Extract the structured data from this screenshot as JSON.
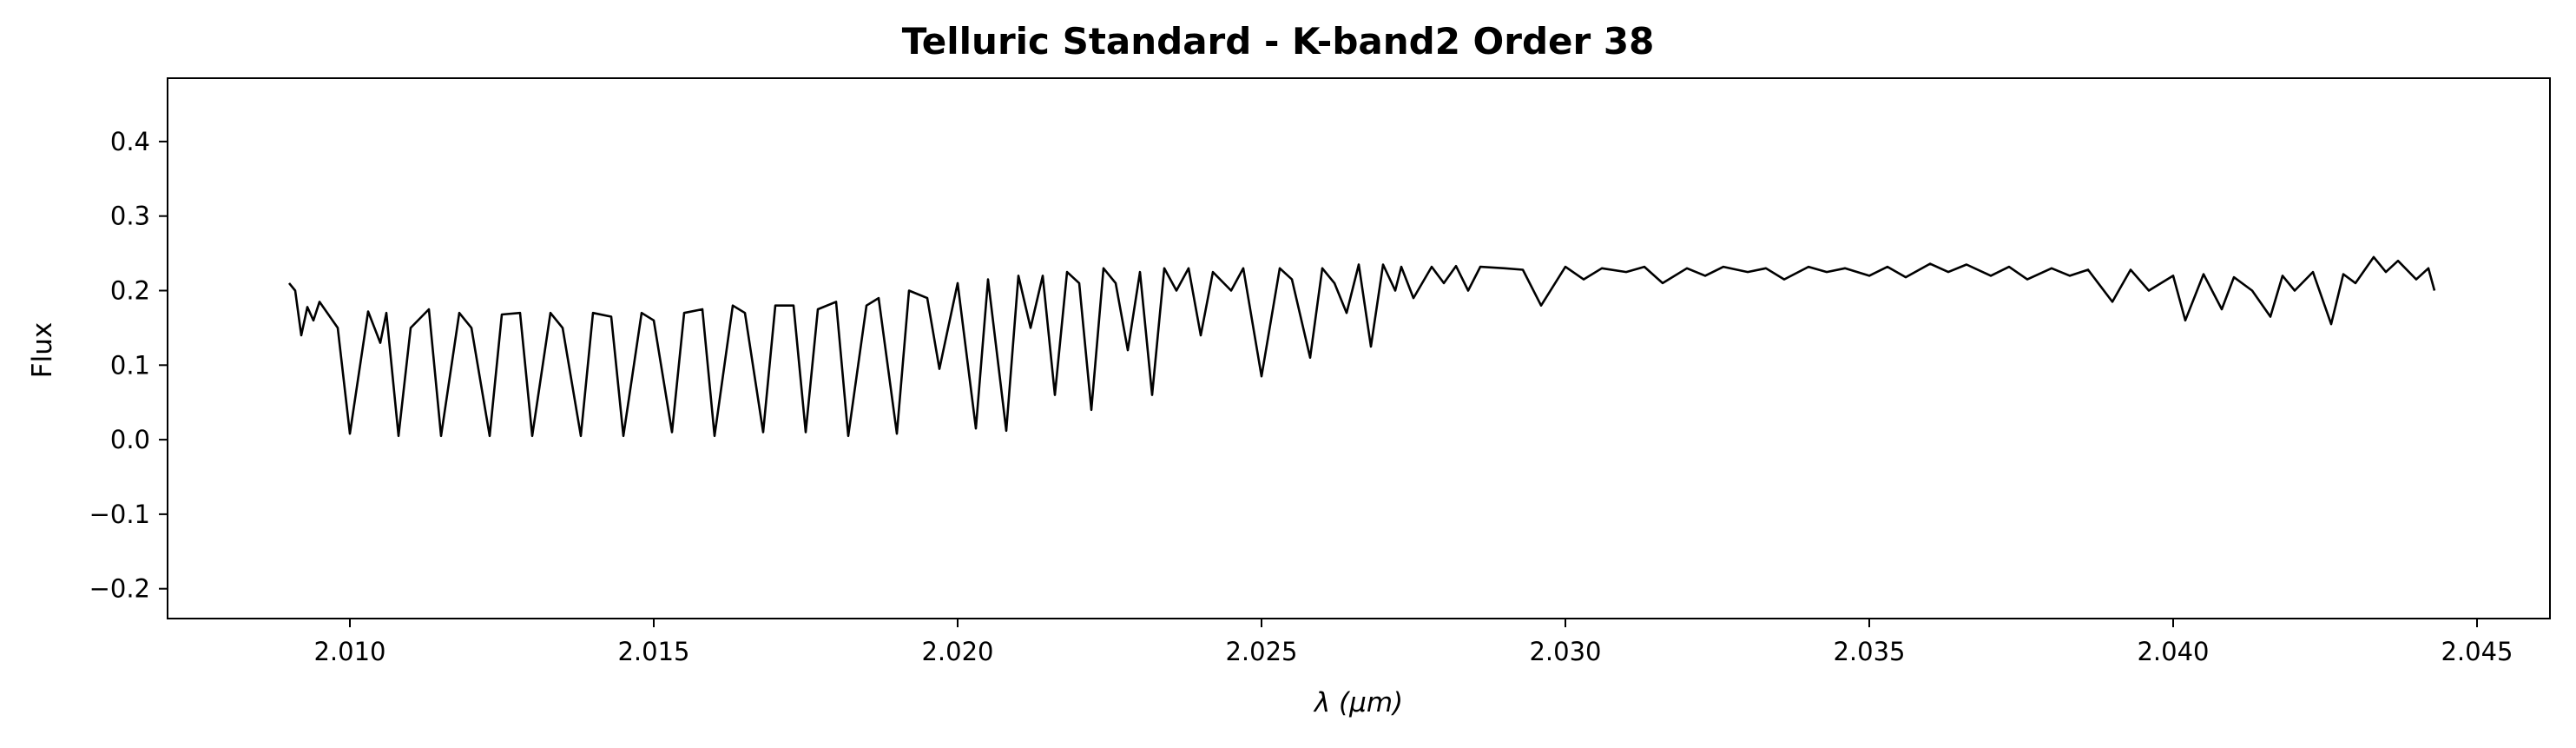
{
  "chart_data": {
    "type": "line",
    "title": "Telluric Standard - K-band2 Order 38",
    "xlabel": "λ (μm)",
    "ylabel": "Flux",
    "xlim": [
      2.007,
      2.0462
    ],
    "ylim": [
      -0.24,
      0.485
    ],
    "x_ticks": [
      2.01,
      2.015,
      2.02,
      2.025,
      2.03,
      2.035,
      2.04,
      2.045
    ],
    "x_tick_labels": [
      "2.010",
      "2.015",
      "2.020",
      "2.025",
      "2.030",
      "2.035",
      "2.040",
      "2.045"
    ],
    "y_ticks": [
      -0.2,
      -0.1,
      0.0,
      0.1,
      0.2,
      0.3,
      0.4
    ],
    "y_tick_labels": [
      "−0.2",
      "−0.1",
      "0.0",
      "0.1",
      "0.2",
      "0.3",
      "0.4"
    ],
    "grid": false,
    "legend": "none",
    "line_color": "#000000",
    "series": [
      {
        "x": [
          2.009,
          2.0091,
          2.0092,
          2.0093,
          2.0094,
          2.0095,
          2.0098,
          2.01,
          2.0103,
          2.0105,
          2.0106,
          2.0108,
          2.011,
          2.0113,
          2.0115,
          2.0118,
          2.012,
          2.0123,
          2.0125,
          2.0128,
          2.013,
          2.0133,
          2.0135,
          2.0138,
          2.014,
          2.0143,
          2.0145,
          2.0148,
          2.015,
          2.0153,
          2.0155,
          2.0158,
          2.016,
          2.0163,
          2.0165,
          2.0168,
          2.017,
          2.0173,
          2.0175,
          2.0177,
          2.018,
          2.0182,
          2.0185,
          2.0187,
          2.019,
          2.0192,
          2.0195,
          2.0197,
          2.02,
          2.0203,
          2.0205,
          2.0208,
          2.021,
          2.0212,
          2.0214,
          2.0216,
          2.0218,
          2.022,
          2.0222,
          2.0224,
          2.0226,
          2.0228,
          2.023,
          2.0232,
          2.0234,
          2.0236,
          2.0238,
          2.024,
          2.0242,
          2.0245,
          2.0247,
          2.025,
          2.0253,
          2.0255,
          2.0258,
          2.026,
          2.0262,
          2.0264,
          2.0266,
          2.0268,
          2.027,
          2.0272,
          2.0273,
          2.0275,
          2.0278,
          2.028,
          2.0282,
          2.0284,
          2.0286,
          2.029,
          2.0293,
          2.0296,
          2.03,
          2.0303,
          2.0306,
          2.031,
          2.0313,
          2.0316,
          2.032,
          2.0323,
          2.0326,
          2.033,
          2.0333,
          2.0336,
          2.034,
          2.0343,
          2.0346,
          2.035,
          2.0353,
          2.0356,
          2.036,
          2.0363,
          2.0366,
          2.037,
          2.0373,
          2.0376,
          2.038,
          2.0383,
          2.0386,
          2.039,
          2.0393,
          2.0396,
          2.04,
          2.0402,
          2.0405,
          2.0408,
          2.041,
          2.0413,
          2.0416,
          2.0418,
          2.042,
          2.0423,
          2.0426,
          2.0428,
          2.043,
          2.0433,
          2.0435,
          2.0437,
          2.044,
          2.0442,
          2.0443
        ],
        "y": [
          0.21,
          0.2,
          0.14,
          0.178,
          0.16,
          0.185,
          0.15,
          0.008,
          0.172,
          0.13,
          0.17,
          0.005,
          0.15,
          0.175,
          0.005,
          0.17,
          0.15,
          0.005,
          0.168,
          0.17,
          0.005,
          0.17,
          0.15,
          0.005,
          0.17,
          0.165,
          0.005,
          0.17,
          0.16,
          0.01,
          0.17,
          0.175,
          0.005,
          0.18,
          0.17,
          0.01,
          0.18,
          0.18,
          0.01,
          0.175,
          0.185,
          0.005,
          0.18,
          0.19,
          0.008,
          0.2,
          0.19,
          0.095,
          0.21,
          0.015,
          0.215,
          0.012,
          0.22,
          0.15,
          0.22,
          0.06,
          0.225,
          0.21,
          0.04,
          0.23,
          0.21,
          0.12,
          0.225,
          0.06,
          0.23,
          0.2,
          0.23,
          0.14,
          0.225,
          0.2,
          0.23,
          0.085,
          0.23,
          0.215,
          0.11,
          0.23,
          0.21,
          0.17,
          0.235,
          0.125,
          0.235,
          0.2,
          0.232,
          0.19,
          0.232,
          0.21,
          0.233,
          0.2,
          0.232,
          0.23,
          0.228,
          0.18,
          0.232,
          0.215,
          0.23,
          0.225,
          0.232,
          0.21,
          0.23,
          0.22,
          0.232,
          0.225,
          0.23,
          0.215,
          0.232,
          0.225,
          0.23,
          0.22,
          0.232,
          0.218,
          0.236,
          0.225,
          0.235,
          0.22,
          0.232,
          0.215,
          0.23,
          0.22,
          0.228,
          0.185,
          0.228,
          0.2,
          0.22,
          0.16,
          0.222,
          0.175,
          0.218,
          0.2,
          0.165,
          0.22,
          0.2,
          0.225,
          0.155,
          0.222,
          0.21,
          0.245,
          0.225,
          0.24,
          0.215,
          0.23,
          0.2
        ]
      }
    ]
  }
}
